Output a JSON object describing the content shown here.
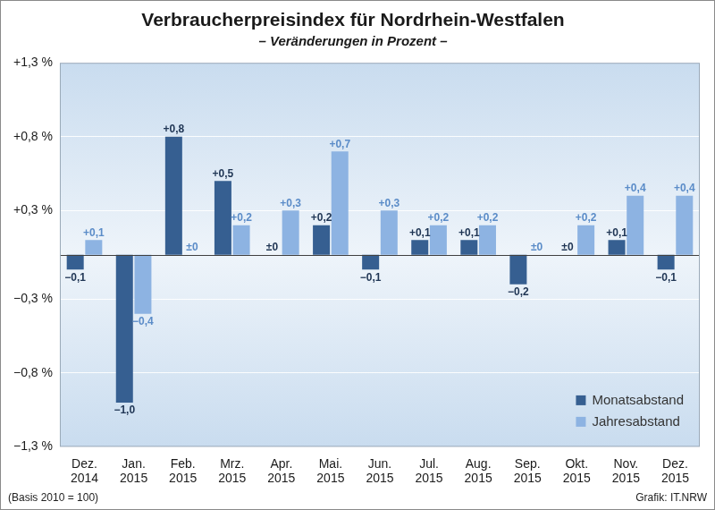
{
  "chart_data": {
    "type": "bar",
    "title": "Verbraucherpreisindex für Nordrhein-Westfalen",
    "subtitle": "– Veränderungen in Prozent –",
    "categories": [
      "Dez. 2014",
      "Jan. 2015",
      "Feb. 2015",
      "Mrz. 2015",
      "Apr. 2015",
      "Mai. 2015",
      "Jun. 2015",
      "Jul. 2015",
      "Aug. 2015",
      "Sep. 2015",
      "Okt. 2015",
      "Nov. 2015",
      "Dez. 2015"
    ],
    "series": [
      {
        "name": "Monatsabstand",
        "color": "#365f91",
        "values": [
          -0.1,
          -1.0,
          0.8,
          0.5,
          0,
          0.2,
          -0.1,
          0.1,
          0.1,
          -0.2,
          0,
          0.1,
          -0.1
        ],
        "value_labels": [
          "−0,1",
          "−1,0",
          "+0,8",
          "+0,5",
          "±0",
          "+0,2",
          "−0,1",
          "+0,1",
          "+0,1",
          "−0,2",
          "±0",
          "+0,1",
          "−0,1"
        ]
      },
      {
        "name": "Jahresabstand",
        "color": "#8db3e2",
        "values": [
          0.1,
          -0.4,
          0,
          0.2,
          0.3,
          0.7,
          0.3,
          0.2,
          0.2,
          0,
          0.2,
          0.4,
          0.4
        ],
        "value_labels": [
          "+0,1",
          "−0,4",
          "±0",
          "+0,2",
          "+0,3",
          "+0,7",
          "+0,3",
          "+0,2",
          "+0,2",
          "±0",
          "+0,2",
          "+0,4",
          "+0,4"
        ]
      }
    ],
    "ylim": [
      -1.3,
      1.3
    ],
    "yticks": [
      {
        "value": -1.3,
        "label": "−1,3 %"
      },
      {
        "value": -0.8,
        "label": "−0,8 %"
      },
      {
        "value": -0.3,
        "label": "−0,3 %"
      },
      {
        "value": 0.3,
        "label": "+0,3 %"
      },
      {
        "value": 0.8,
        "label": "+0,8 %"
      },
      {
        "value": 1.3,
        "label": "+1,3 %"
      }
    ],
    "grid": true,
    "legend": "lower right",
    "data_labels": true,
    "annotations": [
      "(Basis 2010 = 100)",
      "Grafik: IT.NRW"
    ]
  }
}
